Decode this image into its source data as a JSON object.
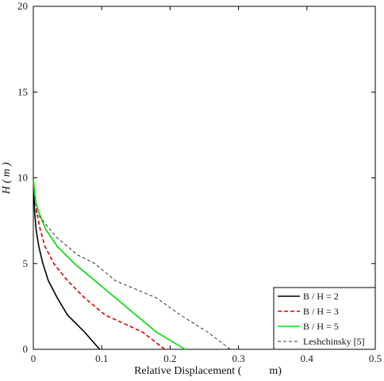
{
  "chart_data": {
    "type": "line",
    "xlabel": "Relative Displacement (          m)",
    "ylabel": "H ( m )",
    "xlim": [
      0,
      0.5
    ],
    "ylim": [
      0,
      20
    ],
    "x_ticks": [
      "0",
      "0.1",
      "0.2",
      "0.3",
      "0.4",
      "0.5"
    ],
    "y_ticks": [
      "0",
      "5",
      "10",
      "15",
      "20"
    ],
    "grid": false,
    "legend_position": "bottom-right",
    "series": [
      {
        "name": "B / H = 2",
        "color": "#000000",
        "style": "solid",
        "points": [
          [
            0.097,
            0
          ],
          [
            0.075,
            1
          ],
          [
            0.05,
            2
          ],
          [
            0.035,
            3
          ],
          [
            0.022,
            4
          ],
          [
            0.014,
            5
          ],
          [
            0.008,
            6
          ],
          [
            0.004,
            7
          ],
          [
            0.002,
            8
          ],
          [
            0.0,
            10
          ]
        ]
      },
      {
        "name": "B / H = 3",
        "color": "#e00000",
        "style": "dashed",
        "points": [
          [
            0.192,
            0
          ],
          [
            0.16,
            1
          ],
          [
            0.105,
            2
          ],
          [
            0.075,
            3
          ],
          [
            0.05,
            4
          ],
          [
            0.03,
            5
          ],
          [
            0.017,
            6
          ],
          [
            0.01,
            7
          ],
          [
            0.005,
            8
          ],
          [
            0.0,
            10
          ]
        ]
      },
      {
        "name": "B / H = 5",
        "color": "#00dd00",
        "style": "solid",
        "points": [
          [
            0.222,
            0
          ],
          [
            0.18,
            1
          ],
          [
            0.15,
            2
          ],
          [
            0.12,
            3
          ],
          [
            0.09,
            4
          ],
          [
            0.06,
            5
          ],
          [
            0.035,
            6
          ],
          [
            0.018,
            7
          ],
          [
            0.008,
            8
          ],
          [
            0.004,
            8.5
          ],
          [
            0.002,
            9
          ],
          [
            0.0,
            10
          ]
        ]
      },
      {
        "name": "Leshchinsky [5]",
        "color": "#333333",
        "style": "dashed-thin",
        "points": [
          [
            0.288,
            0
          ],
          [
            0.255,
            1
          ],
          [
            0.215,
            2
          ],
          [
            0.18,
            3
          ],
          [
            0.15,
            3.5
          ],
          [
            0.12,
            4
          ],
          [
            0.09,
            5
          ],
          [
            0.065,
            5.5
          ],
          [
            0.035,
            6.5
          ],
          [
            0.02,
            7.2
          ],
          [
            0.008,
            7.8
          ],
          [
            0.0,
            8.3
          ]
        ]
      }
    ]
  }
}
